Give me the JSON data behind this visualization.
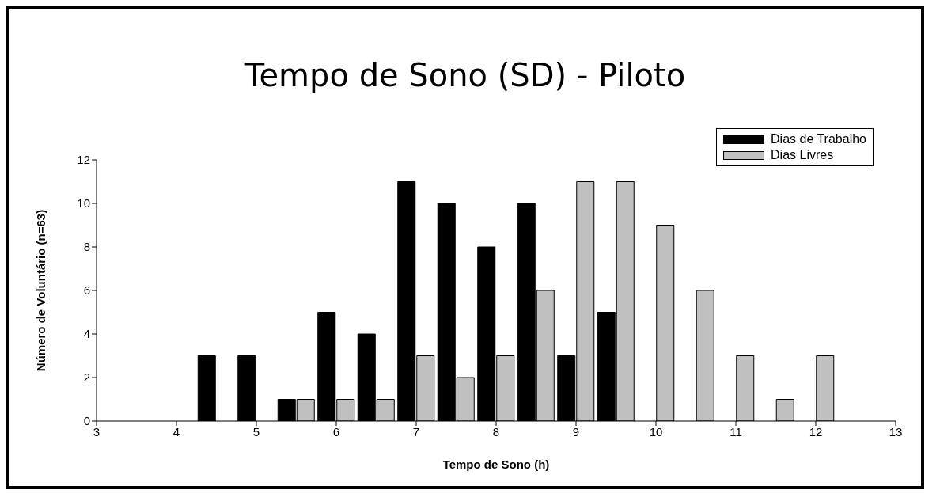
{
  "chart_data": {
    "type": "bar",
    "title": "Tempo de Sono (SD) - Piloto",
    "xlabel": "Tempo de Sono (h)",
    "ylabel": "Número de Voluntário (n=63)",
    "x": [
      4.5,
      5,
      5.5,
      6,
      6.5,
      7,
      7.5,
      8,
      8.5,
      9,
      9.5,
      10,
      10.5,
      11,
      11.5,
      12
    ],
    "series": [
      {
        "name": "Dias de Trabalho",
        "color": "#000000",
        "values": [
          3,
          3,
          1,
          5,
          4,
          11,
          10,
          8,
          10,
          3,
          5,
          0,
          0,
          0,
          0,
          0
        ]
      },
      {
        "name": "Dias Livres",
        "color": "#c0c0c0",
        "values": [
          0,
          0,
          1,
          1,
          1,
          3,
          2,
          3,
          6,
          11,
          11,
          9,
          6,
          3,
          1,
          3
        ]
      }
    ],
    "xlim": [
      3,
      13
    ],
    "xticks": [
      3,
      4,
      5,
      6,
      7,
      8,
      9,
      10,
      11,
      12,
      13
    ],
    "ylim": [
      0,
      12
    ],
    "yticks": [
      0,
      2,
      4,
      6,
      8,
      10,
      12
    ],
    "grid": false,
    "legend": "top right"
  }
}
